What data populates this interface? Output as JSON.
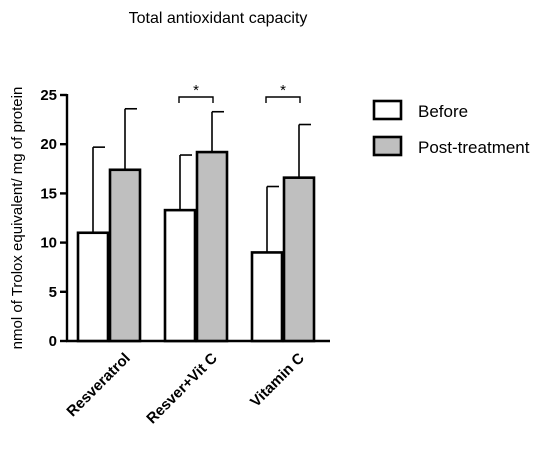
{
  "chart_data": {
    "type": "bar",
    "title": "Total antioxidant capacity",
    "xlabel": "",
    "ylabel": "nmol of Trolox equivalent/ mg of protein",
    "categories": [
      "Resveratrol",
      "Resver+Vit C",
      "Vitamin C"
    ],
    "series": [
      {
        "name": "Before",
        "color": "#ffffff",
        "values": [
          11.0,
          13.3,
          9.0
        ],
        "error_upper": [
          19.7,
          18.9,
          15.7
        ]
      },
      {
        "name": "Post-treatment",
        "color": "#bfbfbf",
        "values": [
          17.4,
          19.2,
          16.6
        ],
        "error_upper": [
          23.6,
          23.3,
          22.0
        ]
      }
    ],
    "ylim": [
      0,
      25
    ],
    "yticks": [
      0,
      5,
      10,
      15,
      20,
      25
    ],
    "grid": false,
    "legend_position": "right",
    "significance": [
      {
        "category": "Resver+Vit C",
        "label": "*"
      },
      {
        "category": "Vitamin C",
        "label": "*"
      }
    ]
  }
}
